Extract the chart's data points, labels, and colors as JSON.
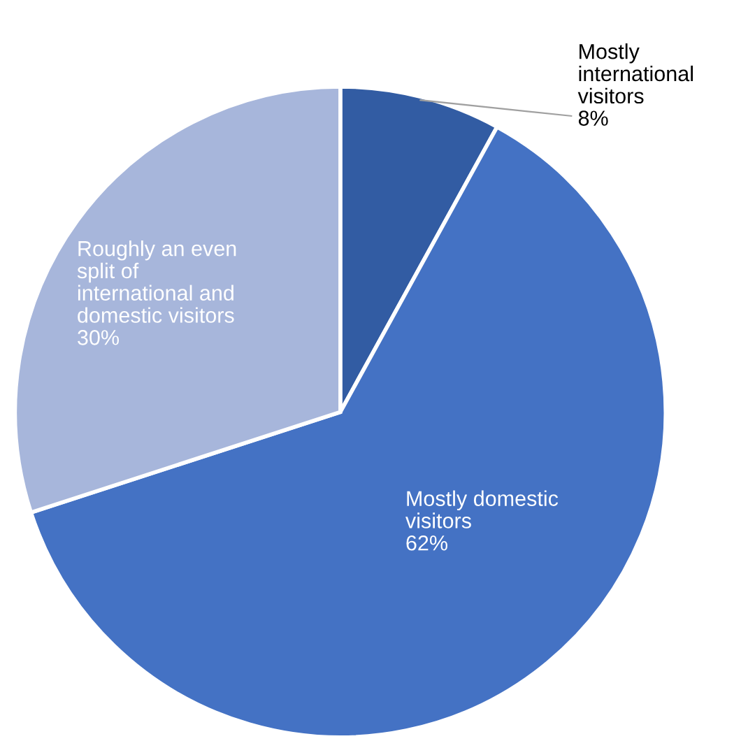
{
  "chart_data": {
    "type": "pie",
    "categories": [
      "Mostly international visitors",
      "Mostly domestic visitors",
      "Roughly an even split of international and domestic visitors"
    ],
    "values": [
      8,
      62,
      30
    ],
    "colors": [
      "#325ca3",
      "#4472c4",
      "#a7b6db"
    ],
    "value_labels": [
      "8%",
      "62%",
      "30%"
    ],
    "legend": false
  }
}
